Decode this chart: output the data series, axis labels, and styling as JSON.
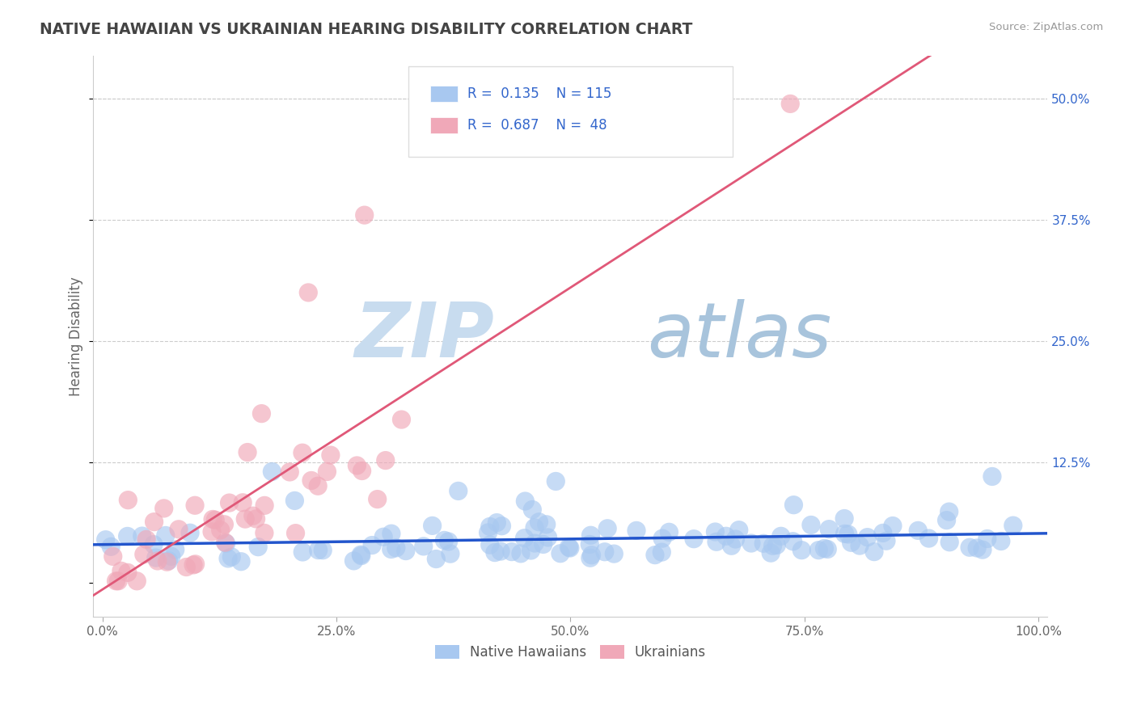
{
  "title": "NATIVE HAWAIIAN VS UKRAINIAN HEARING DISABILITY CORRELATION CHART",
  "source": "Source: ZipAtlas.com",
  "ylabel": "Hearing Disability",
  "r_blue": 0.135,
  "n_blue": 115,
  "r_pink": 0.687,
  "n_pink": 48,
  "blue_color": "#A8C8F0",
  "pink_color": "#F0A8B8",
  "blue_line_color": "#2255CC",
  "pink_line_color": "#E05878",
  "legend_text_color": "#3366CC",
  "title_color": "#444444",
  "background_color": "#FFFFFF",
  "grid_color": "#CCCCCC",
  "ytick_color": "#3366CC",
  "xtick_color": "#666666",
  "ylabel_color": "#666666",
  "source_color": "#999999"
}
